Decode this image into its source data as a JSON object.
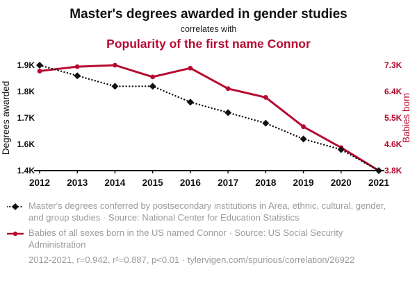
{
  "colors": {
    "accent": "#b60b31",
    "gray": "#9b9b9b",
    "ink": "#111111"
  },
  "header": {
    "title": "Master's degrees awarded in gender studies",
    "connector": "correlates with",
    "title2": "Popularity of the first name Connor"
  },
  "chart_data": {
    "type": "line",
    "x": [
      2012,
      2013,
      2014,
      2015,
      2016,
      2017,
      2018,
      2019,
      2020,
      2021
    ],
    "series": [
      {
        "name": "Master's degrees awarded in gender studies",
        "axis": "left",
        "style": "dotted-black-diamond",
        "values": [
          1900,
          1860,
          1820,
          1820,
          1760,
          1720,
          1680,
          1620,
          1560,
          1400
        ]
      },
      {
        "name": "Babies born in the US named Connor",
        "axis": "right",
        "style": "solid-red-circle",
        "values": [
          7100,
          7250,
          7300,
          6900,
          7200,
          6500,
          6200,
          5200,
          4500,
          3800
        ]
      }
    ],
    "left_axis": {
      "label": "Degrees awarded",
      "tick_labels": [
        "1.9K",
        "1.8K",
        "1.7K",
        "1.6K",
        "1.4K"
      ],
      "tick_values": [
        1900,
        1800,
        1700,
        1600,
        1400
      ]
    },
    "right_axis": {
      "label": "Babies born",
      "tick_labels": [
        "7.3K",
        "6.4K",
        "5.5K",
        "4.6K",
        "3.8K"
      ],
      "tick_values": [
        7300,
        6400,
        5500,
        4600,
        3800
      ]
    },
    "grid": false,
    "legend_position": "bottom"
  },
  "legend": {
    "degrees": "Master's degrees conferred by postsecondary institutions in Area, ethnic, cultural, gender, and group studies · Source: National Center for Education Statistics",
    "babies": "Babies of all sexes born in the US named Connor · Source: US Social Security Administration",
    "stats": "2012-2021, r=0.942, r²=0.887, p<0.01 · tylervigen.com/spurious/correlation/26922"
  }
}
